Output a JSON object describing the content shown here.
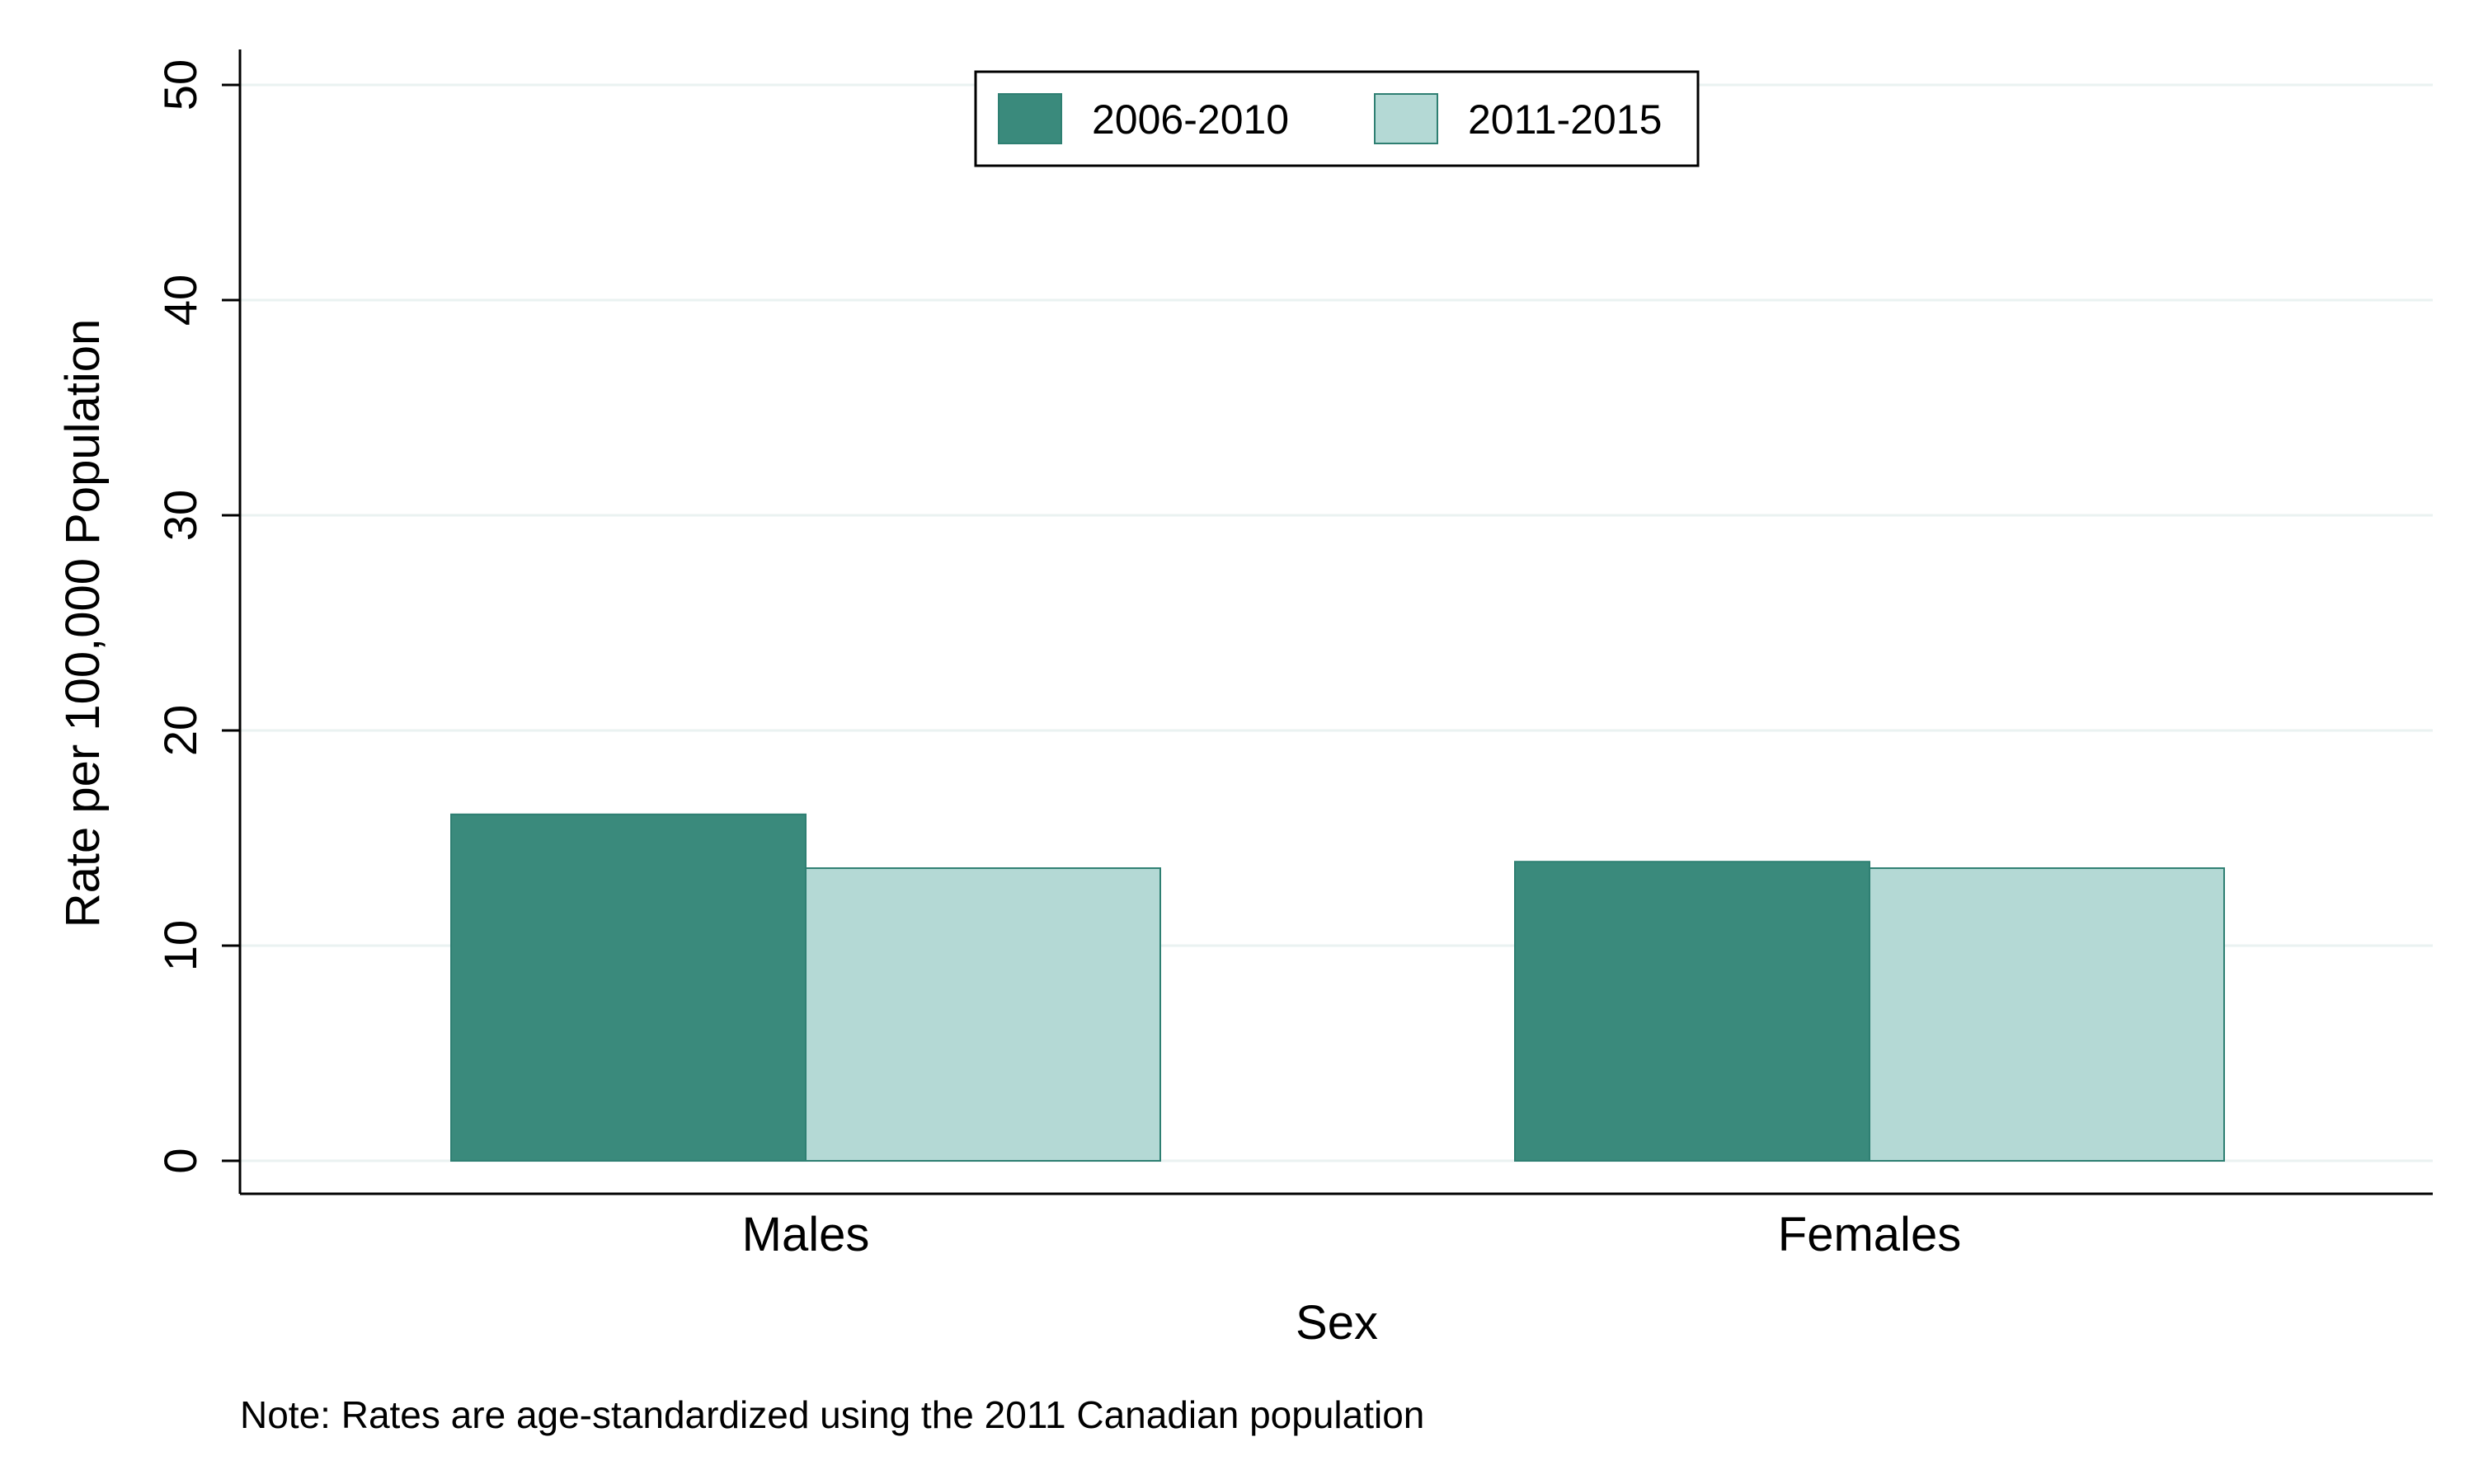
{
  "chart_data": {
    "type": "bar",
    "categories": [
      "Males",
      "Females"
    ],
    "series": [
      {
        "name": "2006-2010",
        "values": [
          16.1,
          13.9
        ],
        "color": "#3a8a7c"
      },
      {
        "name": "2011-2015",
        "values": [
          13.6,
          13.6
        ],
        "color": "#b4d9d5"
      }
    ],
    "xlabel": "Sex",
    "ylabel": "Rate per 100,000 Population",
    "ylim": [
      0,
      50
    ],
    "yticks": [
      "0",
      "10",
      "20",
      "30",
      "40",
      "50"
    ],
    "grid": true,
    "legend": {
      "position": "top-center"
    },
    "note": "Note: Rates are age-standardized using the 2011 Canadian population",
    "gridline_color": "#eaf2f1",
    "bar_edge_color": "#2e7f72"
  }
}
